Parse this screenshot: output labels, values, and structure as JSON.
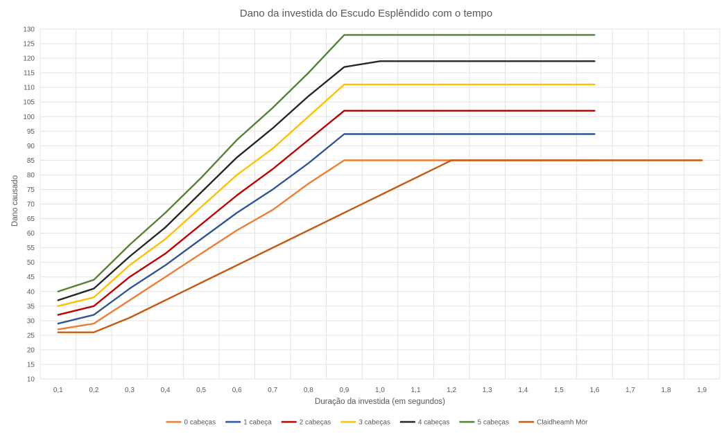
{
  "chart_data": {
    "type": "line",
    "title": "Dano da investida do Escudo Esplêndido com o tempo",
    "xlabel": "Duração da investida (em segundos)",
    "ylabel": "Dano causado",
    "x": [
      "0,1",
      "0,2",
      "0,3",
      "0,4",
      "0,5",
      "0,6",
      "0,7",
      "0,8",
      "0,9",
      "1,0",
      "1,1",
      "1,2",
      "1,3",
      "1,4",
      "1,5",
      "1,6",
      "1,7",
      "1,8",
      "1,9"
    ],
    "y_ticks": [
      "10",
      "15",
      "20",
      "25",
      "30",
      "35",
      "40",
      "45",
      "50",
      "55",
      "60",
      "65",
      "70",
      "75",
      "80",
      "85",
      "90",
      "95",
      "100",
      "105",
      "110",
      "115",
      "120",
      "125",
      "130"
    ],
    "ylim": [
      10,
      130
    ],
    "grid": true,
    "legend_position": "bottom",
    "series": [
      {
        "name": "0 cabeças",
        "color": "#ed7d31",
        "values": [
          27,
          29,
          37,
          45,
          53,
          61,
          68,
          77,
          85,
          85,
          85,
          85,
          85,
          85,
          85,
          85,
          null,
          null,
          null
        ]
      },
      {
        "name": "1 cabeça",
        "color": "#2f5597",
        "values": [
          29,
          32,
          41,
          49,
          58,
          67,
          75,
          84,
          94,
          94,
          94,
          94,
          94,
          94,
          94,
          94,
          null,
          null,
          null
        ]
      },
      {
        "name": "2 cabeças",
        "color": "#c00000",
        "values": [
          32,
          35,
          45,
          53,
          63,
          73,
          82,
          92,
          102,
          102,
          102,
          102,
          102,
          102,
          102,
          102,
          null,
          null,
          null
        ]
      },
      {
        "name": "3 cabeças",
        "color": "#ffc000",
        "values": [
          35,
          38,
          49,
          58,
          69,
          80,
          89,
          100,
          111,
          111,
          111,
          111,
          111,
          111,
          111,
          111,
          null,
          null,
          null
        ]
      },
      {
        "name": "4 cabeças",
        "color": "#262626",
        "values": [
          37,
          41,
          52,
          62,
          74,
          86,
          96,
          107,
          117,
          119,
          119,
          119,
          119,
          119,
          119,
          119,
          null,
          null,
          null
        ]
      },
      {
        "name": "5 cabeças",
        "color": "#548235",
        "values": [
          40,
          44,
          56,
          67,
          79,
          92,
          103,
          115,
          128,
          128,
          128,
          128,
          128,
          128,
          128,
          128,
          null,
          null,
          null
        ]
      },
      {
        "name": "Claidheamh Mòr",
        "color": "#c55a11",
        "values": [
          26,
          26,
          31,
          37,
          43,
          49,
          55,
          61,
          67,
          73,
          79,
          85,
          85,
          85,
          85,
          85,
          85,
          85,
          85
        ]
      }
    ]
  }
}
